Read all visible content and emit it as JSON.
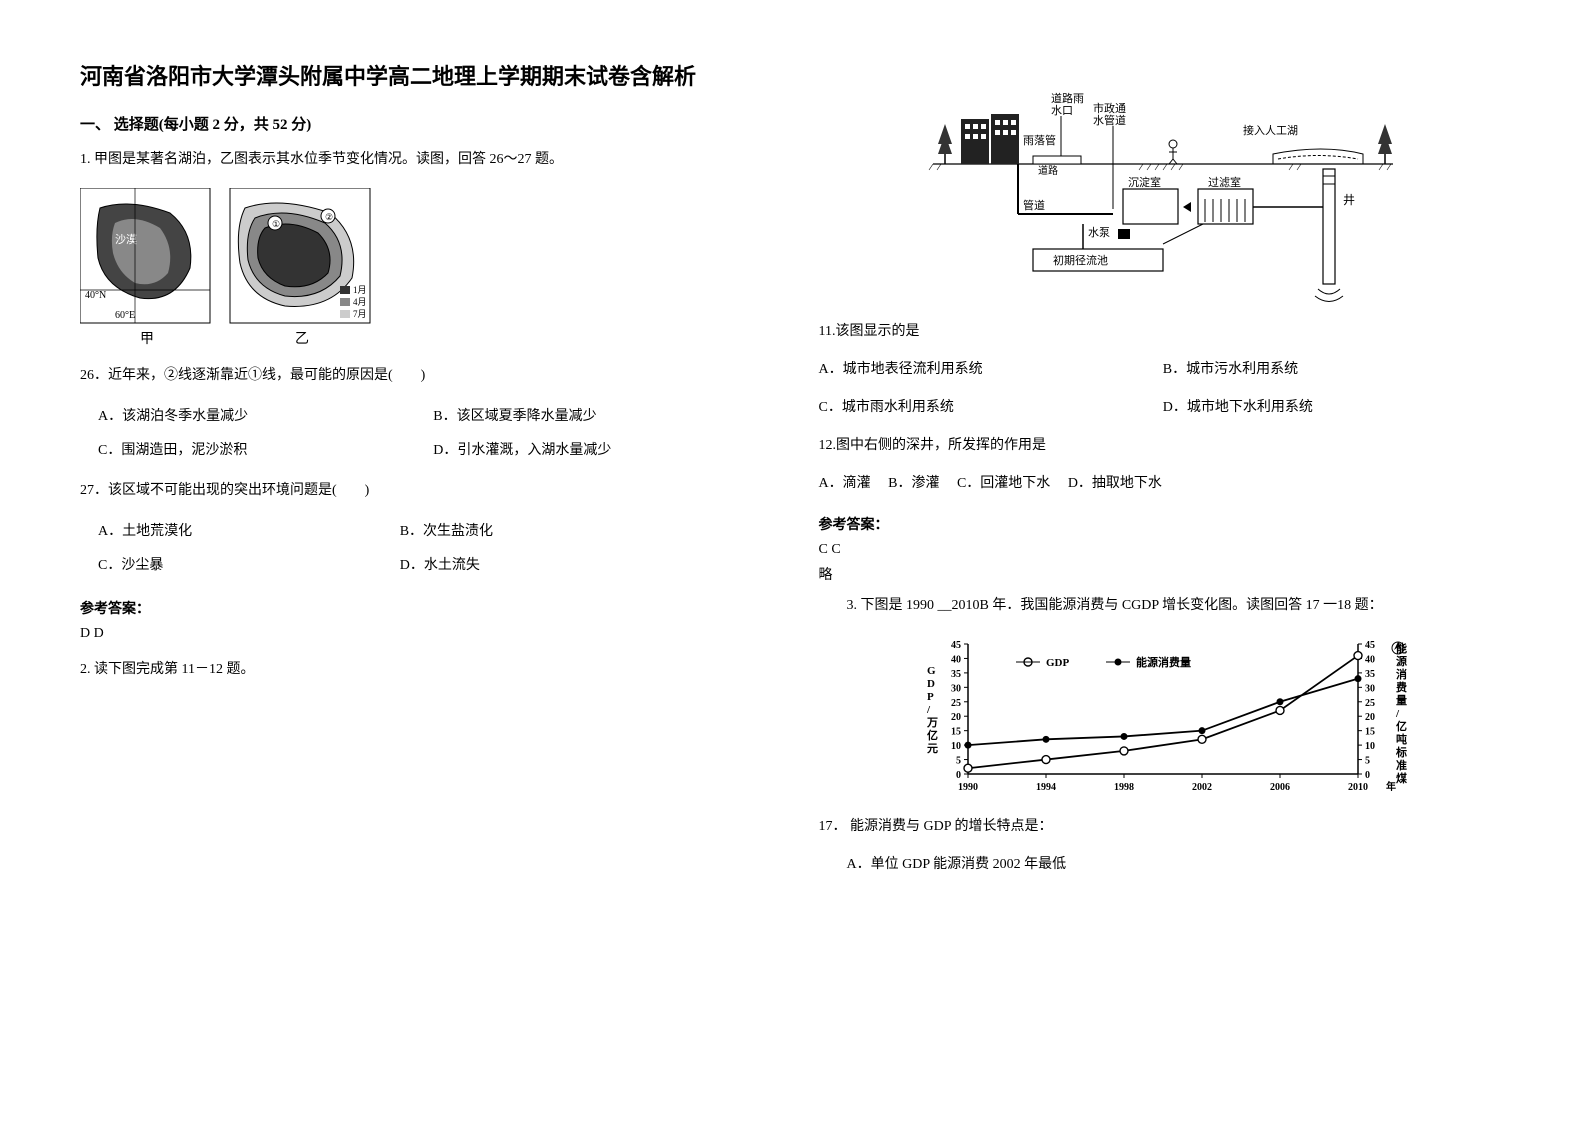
{
  "title": "河南省洛阳市大学潭头附属中学高二地理上学期期末试卷含解析",
  "section1_header": "一、 选择题(每小题 2 分，共 52 分)",
  "q1_stem": "1. 甲图是某著名湖泊，乙图表示其水位季节变化情况。读图，回答 26～27 题。",
  "fig1": {
    "jia_label": "甲",
    "yi_label": "乙",
    "desert_label": "沙漠",
    "lat_label": "40°N",
    "lon_label": "60°E",
    "legend": [
      "1月",
      "4月",
      "7月"
    ],
    "colors": {
      "water": "#3a3a3a",
      "land": "#ffffff",
      "legend1": "#333333",
      "legend2": "#777777",
      "legend3": "#bbbbbb",
      "outline": "#000000"
    }
  },
  "q26_stem": "26．近年来，②线逐渐靠近①线，最可能的原因是(　　)",
  "q26_a": "A．该湖泊冬季水量减少",
  "q26_b": "B．该区域夏季降水量减少",
  "q26_c": "C．围湖造田，泥沙淤积",
  "q26_d": "D．引水灌溉，入湖水量减少",
  "q27_stem": "27．该区域不可能出现的突出环境问题是(　　)",
  "q27_a": "A．土地荒漠化",
  "q27_b": "B．次生盐渍化",
  "q27_c": "C．沙尘暴",
  "q27_d": "D．水土流失",
  "answer_label": "参考答案：",
  "q1_answer": "D  D",
  "q2_stem": "2. 读下图完成第 11－12 题。",
  "fig2": {
    "labels": {
      "rain_road": "道路雨水口",
      "rain_gutter": "雨落管",
      "muni_pipe": "市政通水管道",
      "lake": "接入人工湖",
      "road": "道路",
      "pipe": "管道",
      "sed": "沉淀室",
      "filter": "过滤室",
      "pump": "水泵",
      "well": "井",
      "initial": "初期径流池"
    },
    "colors": {
      "line": "#000000",
      "building": "#222222",
      "ground": "#000000"
    }
  },
  "q11_stem": "11.该图显示的是",
  "q11_a": "A．城市地表径流利用系统",
  "q11_b": "B．城市污水利用系统",
  "q11_c": "C．城市雨水利用系统",
  "q11_d": "D．城市地下水利用系统",
  "q12_stem": "12.图中右侧的深井，所发挥的作用是",
  "q12_a": "A．滴灌",
  "q12_b": "B．渗灌",
  "q12_c": "C．回灌地下水",
  "q12_d": "D．抽取地下水",
  "q2_answer": "C  C",
  "q2_note": "略",
  "q3_stem": "3. 下图是 1990 __2010B 年．我国能源消费与 CGDP 增长变化图。读图回答 17 一18 题：",
  "fig3": {
    "type": "line",
    "x_categories": [
      "1990",
      "1994",
      "1998",
      "2002",
      "2006",
      "2010"
    ],
    "x_label_suffix": "年",
    "y_left_label": "GDP/万亿元",
    "y_right_label": "能源消费量/亿吨标准煤",
    "ylim_left": [
      0,
      45
    ],
    "ylim_right": [
      0,
      45
    ],
    "ytick_step": 5,
    "series": [
      {
        "name": "GDP",
        "marker": "hollow-circle",
        "values": [
          2,
          5,
          8,
          12,
          22,
          41
        ]
      },
      {
        "name": "能源消费量",
        "marker": "filled-circle",
        "values": [
          10,
          12,
          13,
          15,
          25,
          33
        ]
      }
    ],
    "legend_labels": [
      "GDP",
      "能源消费量"
    ],
    "colors": {
      "line": "#000000",
      "bg": "#ffffff",
      "axis": "#000000"
    }
  },
  "q17_stem": "17．  能源消费与 GDP 的增长特点是：",
  "q17_a": "A．单位 GDP 能源消费 2002 年最低"
}
